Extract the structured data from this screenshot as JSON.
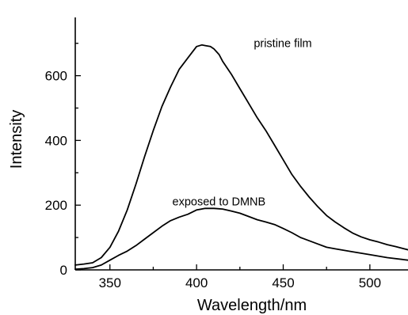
{
  "chart_data": {
    "type": "line",
    "title": "",
    "xlabel": "Wavelength/nm",
    "ylabel": "Intensity",
    "xlim": [
      330,
      522
    ],
    "ylim": [
      0,
      780
    ],
    "x_ticks": [
      350,
      400,
      450,
      500
    ],
    "y_ticks": [
      0,
      200,
      400,
      600
    ],
    "grid": false,
    "series": [
      {
        "label": "pristine film",
        "x": [
          330,
          335,
          340,
          345,
          350,
          355,
          360,
          365,
          370,
          375,
          380,
          385,
          390,
          395,
          400,
          403,
          405,
          408,
          410,
          413,
          415,
          420,
          425,
          430,
          435,
          440,
          445,
          450,
          455,
          460,
          465,
          470,
          475,
          480,
          485,
          490,
          495,
          500,
          505,
          510,
          515,
          522
        ],
        "y": [
          15,
          18,
          22,
          38,
          70,
          120,
          185,
          265,
          350,
          430,
          505,
          565,
          620,
          655,
          690,
          695,
          693,
          690,
          683,
          665,
          645,
          605,
          560,
          515,
          470,
          430,
          385,
          340,
          295,
          258,
          225,
          195,
          168,
          148,
          130,
          114,
          102,
          93,
          86,
          78,
          72,
          62
        ]
      },
      {
        "label": "exposed to DMNB",
        "x": [
          330,
          335,
          340,
          345,
          350,
          355,
          360,
          365,
          370,
          375,
          380,
          385,
          390,
          395,
          400,
          405,
          410,
          415,
          420,
          425,
          430,
          435,
          440,
          445,
          450,
          455,
          460,
          465,
          470,
          475,
          480,
          490,
          500,
          510,
          522
        ],
        "y": [
          2,
          4,
          7,
          15,
          30,
          45,
          58,
          75,
          95,
          115,
          135,
          152,
          163,
          172,
          185,
          190,
          190,
          188,
          182,
          175,
          165,
          155,
          148,
          140,
          128,
          115,
          100,
          90,
          80,
          70,
          65,
          56,
          47,
          38,
          30
        ]
      }
    ]
  }
}
